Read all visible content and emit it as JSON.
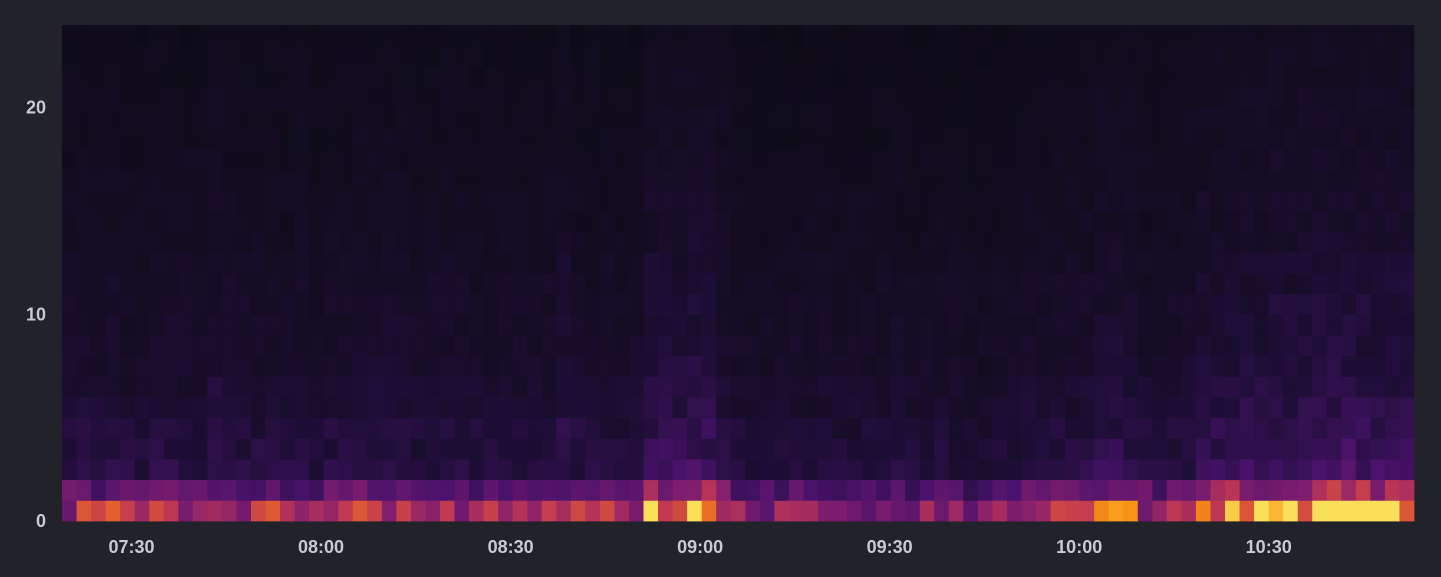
{
  "chart_data": {
    "type": "heatmap",
    "title": "",
    "xlabel": "",
    "ylabel": "",
    "x_tick_labels": [
      "07:30",
      "08:00",
      "08:30",
      "09:00",
      "09:30",
      "10:00",
      "10:30"
    ],
    "x_tick_values": [
      "07:30",
      "08:00",
      "08:30",
      "09:00",
      "09:30",
      "10:00",
      "10:30"
    ],
    "x_range": [
      "07:19",
      "10:53"
    ],
    "bucket_minutes": 3,
    "y_tick_labels": [
      "0",
      "10",
      "20"
    ],
    "y_tick_values": [
      0,
      10,
      20
    ],
    "y_range": [
      0,
      24
    ],
    "y_bucket_size": 1,
    "color_scale": "inferno",
    "colors": {
      "background": "#22232a",
      "plot_background": "#0c0b14",
      "tick_text": "#c9cad0"
    },
    "row_profile": [
      1.0,
      0.62,
      0.28,
      0.24,
      0.22,
      0.18,
      0.16,
      0.14,
      0.13,
      0.12,
      0.12,
      0.11,
      0.1,
      0.09,
      0.08,
      0.08,
      0.07,
      0.07,
      0.06,
      0.06,
      0.06,
      0.05,
      0.05,
      0.04
    ],
    "column_intensity": [
      0.58,
      0.6,
      0.56,
      0.62,
      0.55,
      0.52,
      0.58,
      0.6,
      0.56,
      0.52,
      0.72,
      0.6,
      0.55,
      0.58,
      0.6,
      0.52,
      0.65,
      0.5,
      0.58,
      0.55,
      0.62,
      0.66,
      0.64,
      0.6,
      0.52,
      0.58,
      0.6,
      0.56,
      0.54,
      0.55,
      0.52,
      0.56,
      0.58,
      0.6,
      0.72,
      0.58,
      0.54,
      0.56,
      0.52,
      0.55,
      0.85,
      0.88,
      0.86,
      0.92,
      0.9,
      0.72,
      0.5,
      0.48,
      0.46,
      0.47,
      0.5,
      0.48,
      0.52,
      0.46,
      0.48,
      0.5,
      0.48,
      0.52,
      0.45,
      0.5,
      0.52,
      0.48,
      0.42,
      0.44,
      0.46,
      0.48,
      0.55,
      0.52,
      0.58,
      0.56,
      0.6,
      0.72,
      0.75,
      0.7,
      0.56,
      0.55,
      0.58,
      0.62,
      0.78,
      0.82,
      0.85,
      0.86,
      0.9,
      0.95,
      0.92,
      0.94,
      0.98,
      1.0,
      0.99,
      0.97,
      0.96,
      0.95,
      0.93
    ]
  }
}
